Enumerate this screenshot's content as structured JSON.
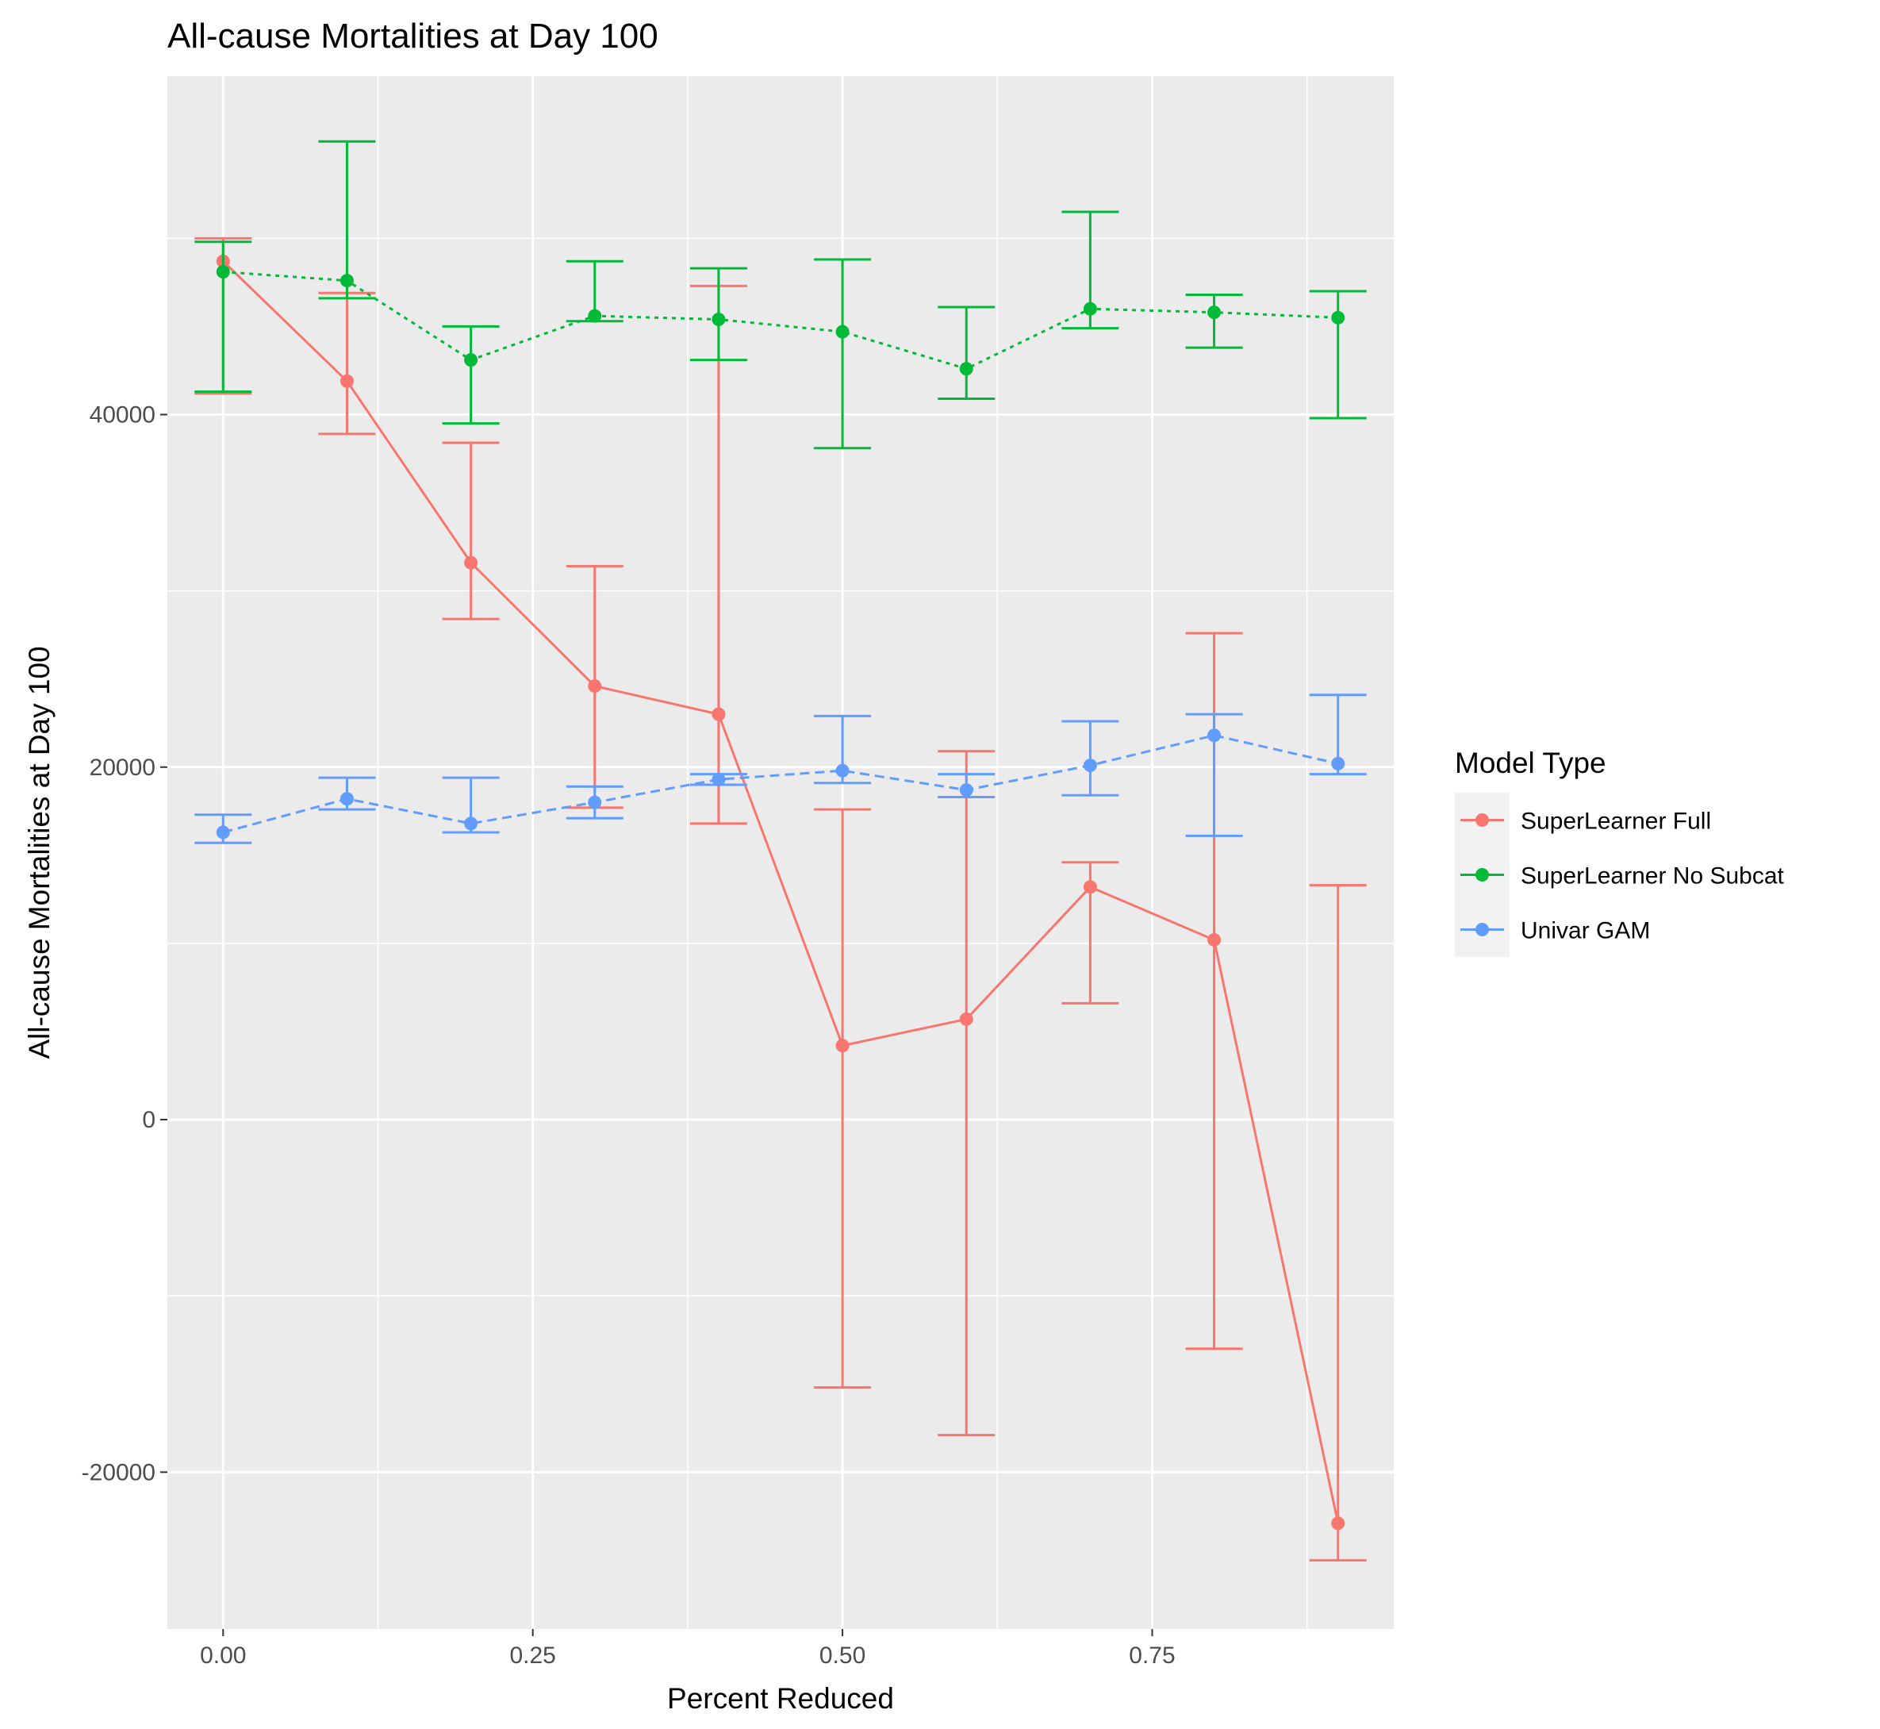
{
  "chart_data": {
    "type": "line",
    "title": "All-cause Mortalities at Day 100",
    "xlabel": "Percent Reduced",
    "ylabel": "All-cause Mortalities at Day 100",
    "xlim": [
      -0.045,
      0.945
    ],
    "ylim": [
      -28900,
      59200
    ],
    "x_ticks": [
      0.0,
      0.25,
      0.5,
      0.75
    ],
    "x_tick_labels": [
      "0.00",
      "0.25",
      "0.50",
      "0.75"
    ],
    "x_minor_ticks": [
      0.125,
      0.375,
      0.625,
      0.875
    ],
    "y_ticks": [
      -20000,
      0,
      20000,
      40000
    ],
    "y_tick_labels": [
      "-20000",
      "0",
      "20000",
      "40000"
    ],
    "y_minor_ticks": [
      -10000,
      10000,
      30000,
      50000
    ],
    "grid": true,
    "legend": {
      "title": "Model Type",
      "position": "right"
    },
    "series": [
      {
        "name": "SuperLearner Full",
        "color": "#F8766D",
        "linestyle": "solid",
        "x": [
          0.0,
          0.1,
          0.2,
          0.3,
          0.4,
          0.5,
          0.6,
          0.7,
          0.8,
          0.9
        ],
        "y": [
          48700,
          41900,
          31600,
          24600,
          23000,
          4200,
          5700,
          13200,
          10200,
          -22900
        ],
        "lower": [
          41200,
          38900,
          28400,
          17700,
          16800,
          -15200,
          -17900,
          6600,
          -13000,
          -25000
        ],
        "upper": [
          50000,
          46900,
          38400,
          31400,
          47300,
          17600,
          20900,
          14600,
          27600,
          13300
        ]
      },
      {
        "name": "SuperLearner No Subcat",
        "color": "#00BA38",
        "linestyle": "dotted",
        "x": [
          0.0,
          0.1,
          0.2,
          0.3,
          0.4,
          0.5,
          0.6,
          0.7,
          0.8,
          0.9
        ],
        "y": [
          48100,
          47600,
          43100,
          45600,
          45400,
          44700,
          42600,
          46000,
          45800,
          45500
        ],
        "lower": [
          41300,
          46600,
          39500,
          45300,
          43100,
          38100,
          40900,
          44900,
          43800,
          39800
        ],
        "upper": [
          49800,
          55500,
          45000,
          48700,
          48300,
          48800,
          46100,
          51500,
          46800,
          47000
        ]
      },
      {
        "name": "Univar GAM",
        "color": "#619CFF",
        "linestyle": "dashed",
        "x": [
          0.0,
          0.1,
          0.2,
          0.3,
          0.4,
          0.5,
          0.6,
          0.7,
          0.8,
          0.9
        ],
        "y": [
          16300,
          18200,
          16800,
          18000,
          19300,
          19800,
          18700,
          20100,
          21800,
          20200
        ],
        "lower": [
          15700,
          17600,
          16300,
          17100,
          19000,
          19100,
          18300,
          18400,
          16100,
          19600
        ],
        "upper": [
          17300,
          19400,
          19400,
          18900,
          19600,
          22900,
          19600,
          22600,
          23000,
          24100
        ]
      }
    ]
  }
}
